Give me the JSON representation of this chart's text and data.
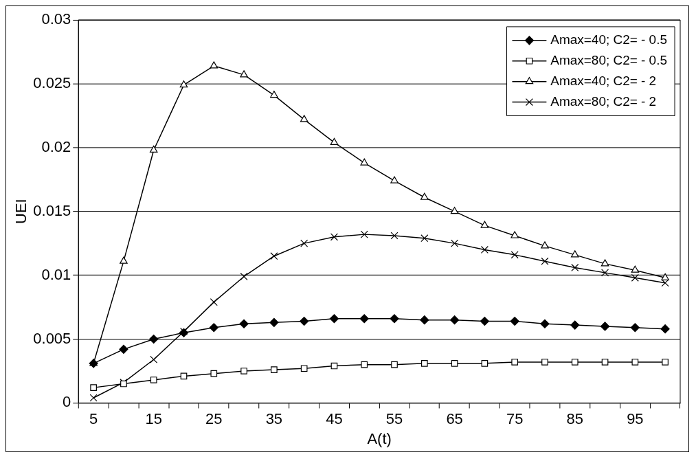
{
  "chart_data": {
    "type": "line",
    "xlabel": "A(t)",
    "ylabel": "UEI",
    "categories": [
      "5",
      null,
      "15",
      null,
      "25",
      null,
      "35",
      null,
      "45",
      null,
      "55",
      null,
      "65",
      null,
      "75",
      null,
      "85",
      null,
      "95",
      null
    ],
    "ylim": [
      0,
      0.03
    ],
    "yticks": [
      0,
      0.005,
      0.01,
      0.015,
      0.02,
      0.025,
      0.03
    ],
    "grid": "y",
    "legend": "top right",
    "series": [
      {
        "name": "Amax=40; C2= - 0.5",
        "color": "#000000",
        "marker": "diamond",
        "values": [
          0.0031,
          0.0042,
          0.005,
          0.0055,
          0.0059,
          0.0062,
          0.0063,
          0.0064,
          0.0066,
          0.0066,
          0.0066,
          0.0065,
          0.0065,
          0.0064,
          0.0064,
          0.0062,
          0.0061,
          0.006,
          0.0059,
          0.0058
        ]
      },
      {
        "name": "Amax=80; C2= - 0.5",
        "color": "#000000",
        "marker": "square",
        "values": [
          0.0012,
          0.0015,
          0.0018,
          0.0021,
          0.0023,
          0.0025,
          0.0026,
          0.0027,
          0.0029,
          0.003,
          0.003,
          0.0031,
          0.0031,
          0.0031,
          0.0032,
          0.0032,
          0.0032,
          0.0032,
          0.0032,
          0.0032
        ]
      },
      {
        "name": "Amax=40; C2= - 2",
        "color": "#000000",
        "marker": "triangle",
        "values": [
          0.0031,
          0.0111,
          0.0198,
          0.0249,
          0.0264,
          0.0257,
          0.0241,
          0.0222,
          0.0204,
          0.0188,
          0.0174,
          0.0161,
          0.015,
          0.0139,
          0.0131,
          0.0123,
          0.0116,
          0.0109,
          0.0104,
          0.0098
        ]
      },
      {
        "name": "Amax=80; C2= - 2",
        "color": "#000000",
        "marker": "cross",
        "values": [
          0.0004,
          0.0016,
          0.0034,
          0.0056,
          0.0079,
          0.0099,
          0.0115,
          0.0125,
          0.013,
          0.0132,
          0.0131,
          0.0129,
          0.0125,
          0.012,
          0.0116,
          0.0111,
          0.0106,
          0.0102,
          0.0098,
          0.0094
        ]
      }
    ]
  }
}
